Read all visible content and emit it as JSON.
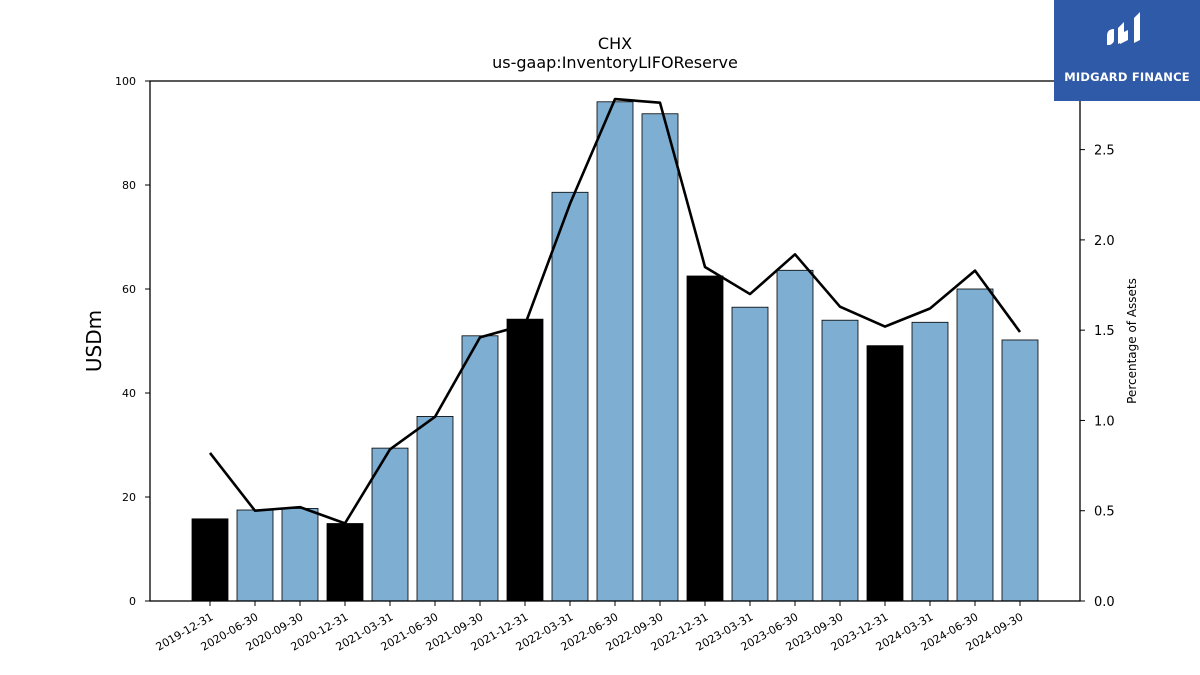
{
  "chart_data": {
    "type": "bar",
    "title": "CHX",
    "subtitle": "us-gaap:InventoryLIFOReserve",
    "ylabel": "USDm",
    "y2label": "Percentage of Assets",
    "ylim": [
      0,
      100
    ],
    "y2lim": [
      0,
      2.88
    ],
    "yticks": [
      0,
      20,
      40,
      60,
      80,
      100
    ],
    "y2ticks": [
      "0.0",
      "0.5",
      "1.0",
      "1.5",
      "2.0",
      "2.5"
    ],
    "categories": [
      "2019-12-31",
      "2020-06-30",
      "2020-09-30",
      "2020-12-31",
      "2021-03-31",
      "2021-06-30",
      "2021-09-30",
      "2021-12-31",
      "2022-03-31",
      "2022-06-30",
      "2022-09-30",
      "2022-12-31",
      "2023-03-31",
      "2023-06-30",
      "2023-09-30",
      "2023-12-31",
      "2024-03-31",
      "2024-06-30",
      "2024-09-30"
    ],
    "series": [
      {
        "type": "bar",
        "values": [
          15.8,
          17.5,
          17.8,
          14.9,
          29.4,
          35.5,
          51.0,
          54.2,
          78.6,
          96.0,
          93.7,
          62.5,
          56.5,
          63.6,
          54.0,
          49.1,
          53.6,
          60.0,
          50.2
        ],
        "fiscal_year_end": [
          true,
          false,
          false,
          true,
          false,
          false,
          false,
          true,
          false,
          false,
          false,
          true,
          false,
          false,
          false,
          true,
          false,
          false,
          false
        ],
        "colors": {
          "year_end": "#000000",
          "quarter": "#7eaed2"
        }
      },
      {
        "type": "line",
        "axis": "right",
        "values": [
          0.82,
          0.5,
          0.52,
          0.43,
          0.84,
          1.02,
          1.46,
          1.53,
          2.2,
          2.78,
          2.76,
          1.85,
          1.7,
          1.92,
          1.63,
          1.52,
          1.62,
          1.83,
          1.49
        ],
        "color": "#000000"
      }
    ],
    "grid": false
  },
  "logo": {
    "text": "MIDGARD FINANCE",
    "background": "#2f5aa8"
  }
}
